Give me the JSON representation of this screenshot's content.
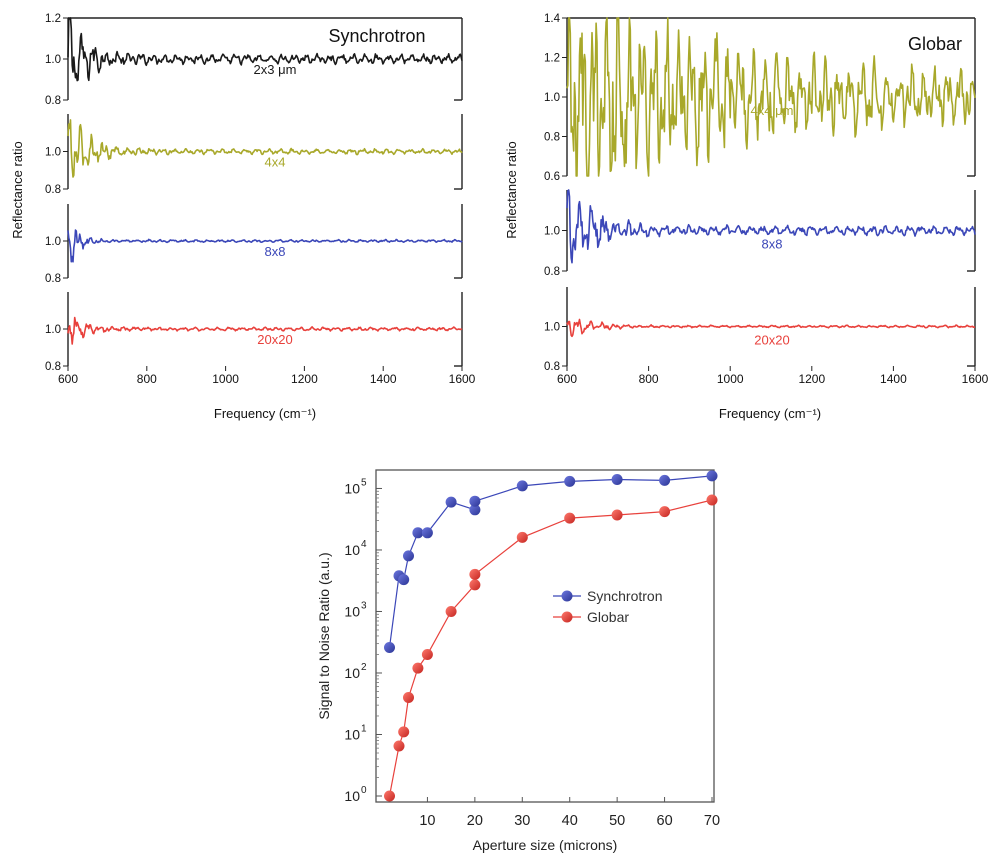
{
  "chart_data": [
    {
      "type": "line",
      "title": "Synchrotron",
      "xlabel": "Frequency (cm⁻¹)",
      "ylabel": "Reflectance ratio",
      "xlim": [
        600,
        1600
      ],
      "xticks": [
        "600",
        "800",
        "1000",
        "1200",
        "1400",
        "1600"
      ],
      "panels": [
        {
          "name": "2x3 μm",
          "color": "#1a1a1a",
          "ylim": [
            0.8,
            1.2
          ],
          "yticks": [
            "0.8",
            "1.0",
            "1.2"
          ],
          "noise": 0.2,
          "decay": 45,
          "floor": 0.02
        },
        {
          "name": "4x4",
          "color": "#a8a82a",
          "ylim": [
            0.8,
            1.2
          ],
          "yticks": [
            "0.8",
            "1.0"
          ],
          "noise": 0.18,
          "decay": 50,
          "floor": 0.012
        },
        {
          "name": "8x8",
          "color": "#3b47b8",
          "ylim": [
            0.8,
            1.2
          ],
          "yticks": [
            "0.8",
            "1.0"
          ],
          "noise": 0.2,
          "decay": 20,
          "floor": 0.006
        },
        {
          "name": "20x20",
          "color": "#e8413c",
          "ylim": [
            0.8,
            1.2
          ],
          "yticks": [
            "0.8",
            "1.0"
          ],
          "noise": 0.08,
          "decay": 40,
          "floor": 0.008
        }
      ]
    },
    {
      "type": "line",
      "title": "Globar",
      "xlabel": "Frequency (cm⁻¹)",
      "ylabel": "Reflectance ratio",
      "xlim": [
        600,
        1600
      ],
      "xticks": [
        "600",
        "800",
        "1000",
        "1200",
        "1400",
        "1600"
      ],
      "panels": [
        {
          "name": "4x4 μm",
          "color": "#a8a82a",
          "ylim": [
            0.6,
            1.4
          ],
          "yticks": [
            "0.6",
            "0.8",
            "1.0",
            "1.2",
            "1.4"
          ],
          "noise": 0.5,
          "decay": 320,
          "floor": 0.1
        },
        {
          "name": "8x8",
          "color": "#3b47b8",
          "ylim": [
            0.8,
            1.2
          ],
          "yticks": [
            "0.8",
            "1.0"
          ],
          "noise": 0.22,
          "decay": 60,
          "floor": 0.02
        },
        {
          "name": "20x20",
          "color": "#e8413c",
          "ylim": [
            0.8,
            1.2
          ],
          "yticks": [
            "0.8",
            "1.0"
          ],
          "noise": 0.06,
          "decay": 50,
          "floor": 0.005
        }
      ]
    },
    {
      "type": "scatter",
      "xlabel": "Aperture size (microns)",
      "ylabel": "Signal to Noise Ratio (a.u.)",
      "xlim": [
        0,
        70
      ],
      "ylim_log10": [
        0,
        5.3
      ],
      "log_y": true,
      "xticks": [
        "10",
        "20",
        "30",
        "40",
        "50",
        "60",
        "70"
      ],
      "yticks": [
        "10",
        "10",
        "10",
        "10",
        "10",
        "10"
      ],
      "ytick_exponents": [
        "0",
        "1",
        "2",
        "3",
        "4",
        "5"
      ],
      "legend_position": "center-right",
      "series": [
        {
          "name": "Synchrotron",
          "color": "#3b47b8",
          "x": [
            2,
            4,
            5,
            6,
            8,
            10,
            15,
            20,
            20,
            30,
            40,
            50,
            60,
            70
          ],
          "y": [
            260,
            3800,
            3300,
            8000,
            19000,
            19000,
            60000,
            45000,
            62000,
            110000,
            130000,
            140000,
            135000,
            160000
          ]
        },
        {
          "name": "Globar",
          "color": "#e8413c",
          "x": [
            2,
            4,
            5,
            6,
            8,
            10,
            15,
            20,
            20,
            30,
            40,
            50,
            60,
            70
          ],
          "y": [
            1,
            6.5,
            11,
            40,
            120,
            200,
            1000,
            2700,
            4000,
            16000,
            33000,
            37000,
            42000,
            65000
          ]
        }
      ]
    }
  ]
}
